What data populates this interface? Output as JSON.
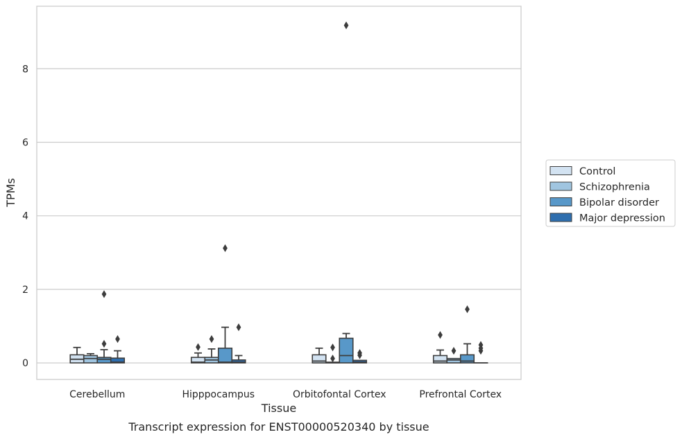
{
  "chart_data": {
    "type": "box",
    "xlabel": "Tissue",
    "ylabel": "TPMs",
    "caption": "Transcript expression for ENST00000520340 by tissue",
    "categories": [
      "Cerebellum",
      "Hipppocampus",
      "Orbitofontal Cortex",
      "Prefrontal Cortex"
    ],
    "ylim": [
      -0.45,
      9.7
    ],
    "yticks": [
      0,
      2,
      4,
      6,
      8
    ],
    "grid": "horizontal",
    "legend_position": "right",
    "series": [
      {
        "name": "Control",
        "color": "#d3e3f2",
        "boxes": [
          {
            "whislo": 0,
            "q1": 0,
            "med": 0.1,
            "q3": 0.22,
            "whishi": 0.42,
            "fliers": []
          },
          {
            "whislo": 0,
            "q1": 0,
            "med": 0.02,
            "q3": 0.15,
            "whishi": 0.27,
            "fliers": [
              0.43
            ]
          },
          {
            "whislo": 0,
            "q1": 0,
            "med": 0.05,
            "q3": 0.22,
            "whishi": 0.4,
            "fliers": []
          },
          {
            "whislo": 0,
            "q1": 0,
            "med": 0.05,
            "q3": 0.2,
            "whishi": 0.35,
            "fliers": [
              0.76
            ]
          }
        ]
      },
      {
        "name": "Schizophrenia",
        "color": "#a0c5e0",
        "boxes": [
          {
            "whislo": 0,
            "q1": 0,
            "med": 0.12,
            "q3": 0.2,
            "whishi": 0.25,
            "fliers": []
          },
          {
            "whislo": 0,
            "q1": 0,
            "med": 0.08,
            "q3": 0.15,
            "whishi": 0.38,
            "fliers": [
              0.65
            ]
          },
          {
            "whislo": 0,
            "q1": 0,
            "med": 0,
            "q3": 0.02,
            "whishi": 0.02,
            "fliers": [
              0.42,
              0.12
            ]
          },
          {
            "whislo": 0,
            "q1": 0,
            "med": 0.08,
            "q3": 0.12,
            "whishi": 0.12,
            "fliers": [
              0.33
            ]
          }
        ]
      },
      {
        "name": "Bipolar disorder",
        "color": "#5898c9",
        "boxes": [
          {
            "whislo": 0,
            "q1": 0,
            "med": 0.1,
            "q3": 0.15,
            "whishi": 0.36,
            "fliers": [
              0.52,
              1.87
            ]
          },
          {
            "whislo": 0,
            "q1": 0,
            "med": 0.02,
            "q3": 0.4,
            "whishi": 0.97,
            "fliers": [
              3.12
            ]
          },
          {
            "whislo": 0,
            "q1": 0,
            "med": 0.2,
            "q3": 0.67,
            "whishi": 0.8,
            "fliers": [
              9.18
            ]
          },
          {
            "whislo": 0,
            "q1": 0,
            "med": 0.05,
            "q3": 0.22,
            "whishi": 0.52,
            "fliers": [
              1.46
            ]
          }
        ]
      },
      {
        "name": "Major depression",
        "color": "#2e6eae",
        "boxes": [
          {
            "whislo": 0,
            "q1": 0,
            "med": 0.02,
            "q3": 0.13,
            "whishi": 0.33,
            "fliers": [
              0.65
            ]
          },
          {
            "whislo": 0,
            "q1": 0,
            "med": 0.02,
            "q3": 0.08,
            "whishi": 0.2,
            "fliers": [
              0.97
            ]
          },
          {
            "whislo": 0,
            "q1": 0,
            "med": 0.02,
            "q3": 0.07,
            "whishi": 0.07,
            "fliers": [
              0.27,
              0.21
            ]
          },
          {
            "whislo": 0,
            "q1": 0,
            "med": 0,
            "q3": 0,
            "whishi": 0,
            "fliers": [
              0.49,
              0.33,
              0.4
            ]
          }
        ]
      }
    ]
  }
}
